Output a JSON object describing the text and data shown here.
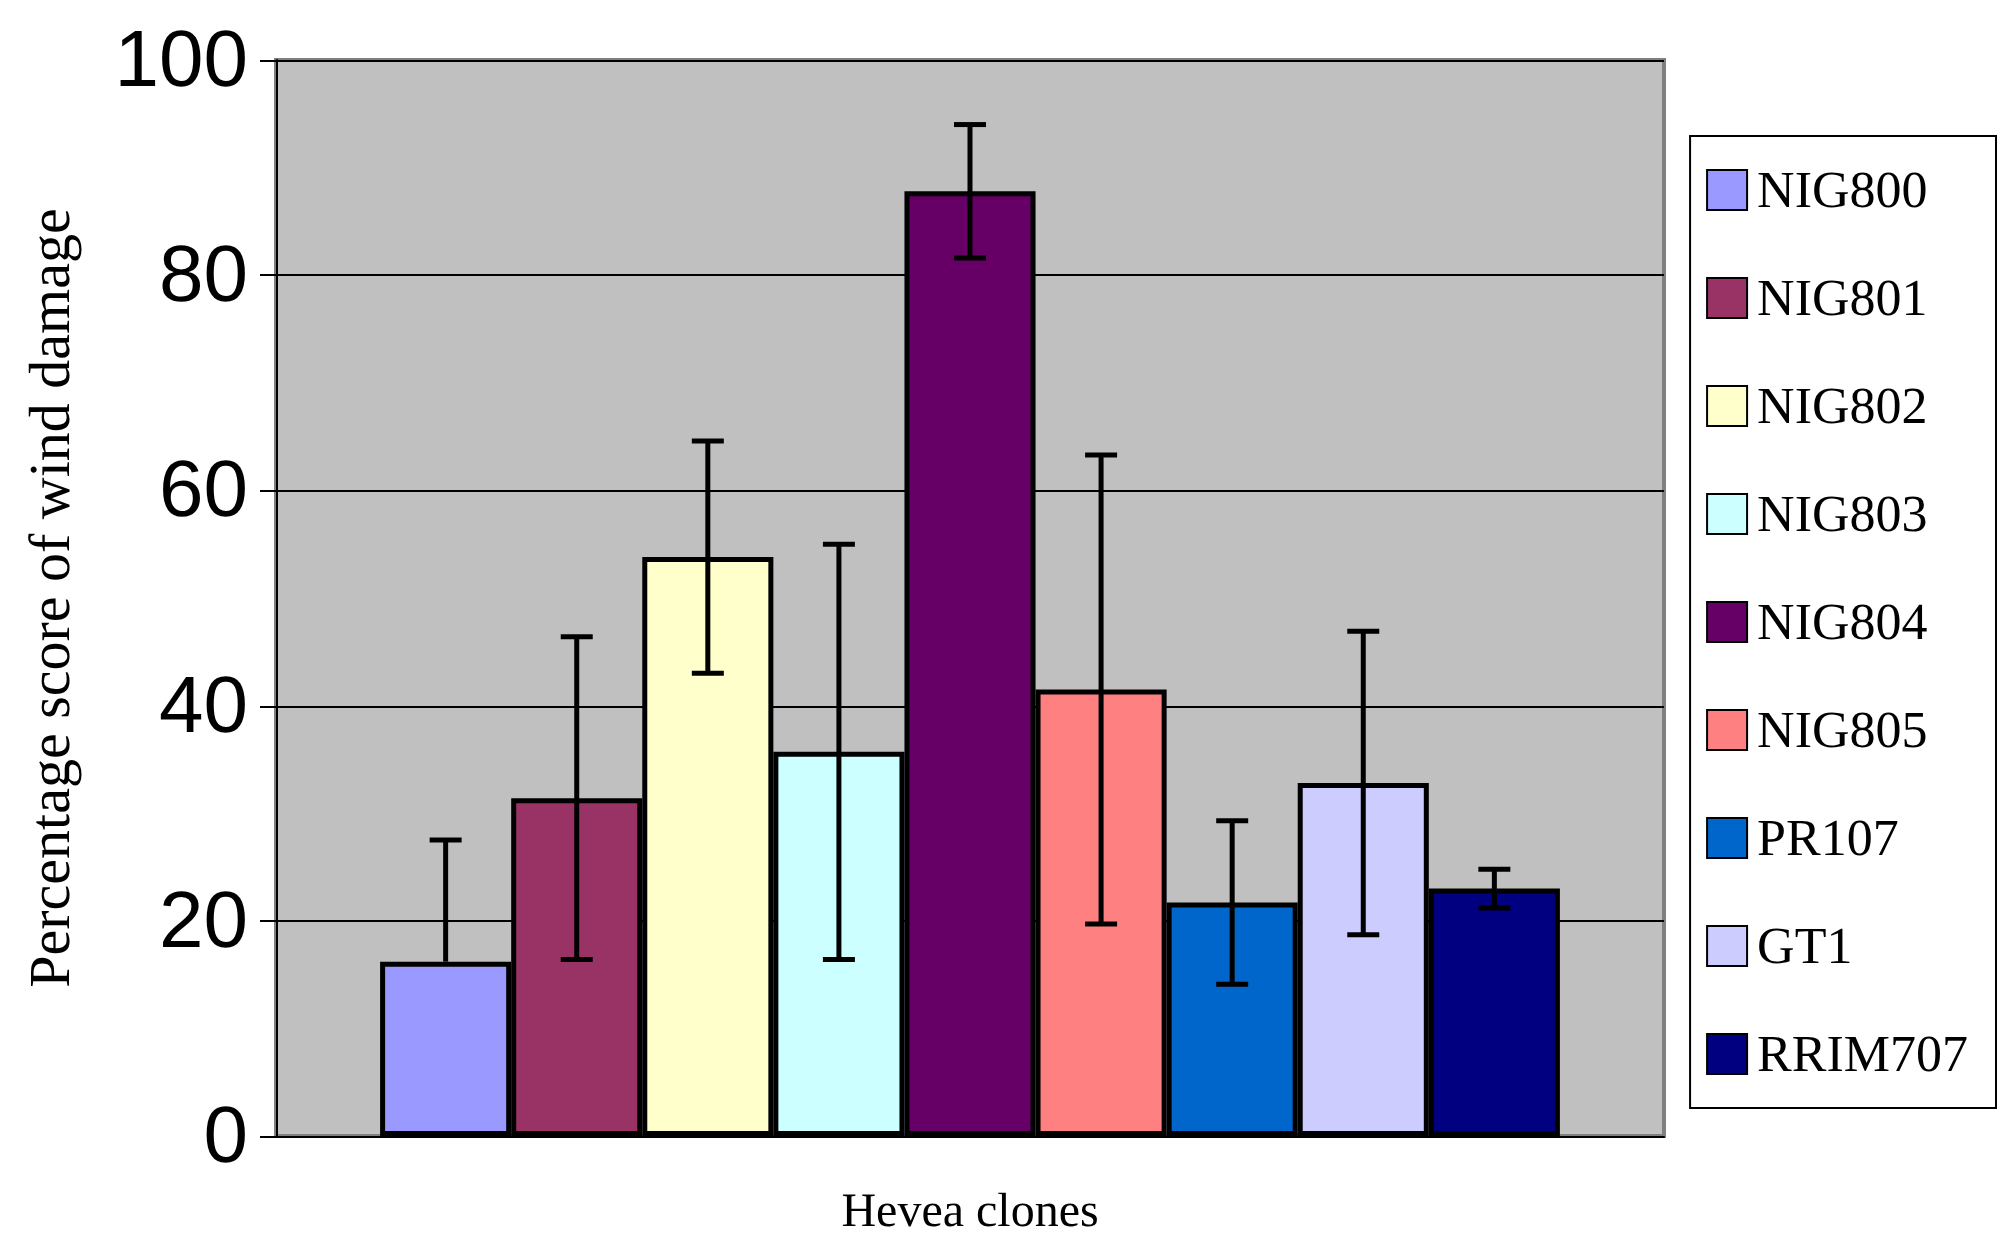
{
  "chart_data": {
    "type": "bar",
    "xlabel": "Hevea clones",
    "ylabel": "Percentage score of wind damage",
    "categories": [
      null
    ],
    "series": [
      {
        "name": "NIG800",
        "color": "#9999ff",
        "values": [
          16.2
        ],
        "errors": [
          [
            16.2,
            27.5
          ]
        ]
      },
      {
        "name": "NIG801",
        "color": "#993366",
        "values": [
          31.4
        ],
        "errors": [
          15
        ]
      },
      {
        "name": "NIG802",
        "color": "#ffffcc",
        "values": [
          53.8
        ],
        "errors": [
          10.8
        ]
      },
      {
        "name": "NIG803",
        "color": "#ccffff",
        "values": [
          35.7
        ],
        "errors": [
          19.3
        ]
      },
      {
        "name": "NIG804",
        "color": "#660066",
        "values": [
          87.8
        ],
        "errors": [
          6.2
        ]
      },
      {
        "name": "NIG805",
        "color": "#ff8080",
        "values": [
          41.5
        ],
        "errors": [
          21.8
        ]
      },
      {
        "name": "PR107",
        "color": "#0066cc",
        "values": [
          21.7
        ],
        "errors": [
          7.6
        ]
      },
      {
        "name": "GT1",
        "color": "#ccccff",
        "values": [
          32.8
        ],
        "errors": [
          14.1
        ]
      },
      {
        "name": "RRIM707",
        "color": "#000080",
        "values": [
          23.0
        ],
        "errors": [
          1.8
        ]
      }
    ],
    "ylim": [
      0,
      100
    ],
    "yticks": [
      0,
      20,
      40,
      60,
      80,
      100
    ],
    "grid": "y",
    "legend": "right"
  }
}
